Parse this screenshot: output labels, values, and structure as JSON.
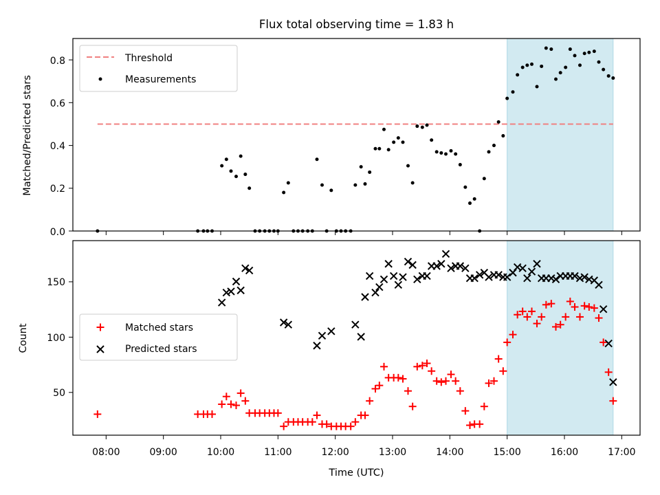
{
  "figure": {
    "title": "Flux total observing time = 1.83 h",
    "xlabel": "Time (UTC)",
    "x_ticks": [
      "08:00",
      "09:00",
      "10:00",
      "11:00",
      "12:00",
      "13:00",
      "14:00",
      "15:00",
      "16:00",
      "17:00"
    ]
  },
  "colors": {
    "threshold": "#f08080",
    "measurements": "#000000",
    "matched": "#ff0000",
    "predicted": "#000000",
    "shade": "#add8e6"
  },
  "chart_data": [
    {
      "type": "scatter",
      "panel": "top",
      "title": "Flux total observing time = 1.83 h",
      "ylabel": "Matched/Predicted stars",
      "xlim": [
        7.42,
        17.32
      ],
      "ylim": [
        0,
        0.9
      ],
      "y_ticks": [
        "0.0",
        "0.2",
        "0.4",
        "0.6",
        "0.8"
      ],
      "y_tick_values": [
        0,
        0.2,
        0.4,
        0.6,
        0.8
      ],
      "shaded_region": [
        15.0,
        16.85
      ],
      "legend": {
        "placement": "upper-left",
        "threshold_label": "Threshold",
        "measurements_label": "Measurements"
      },
      "threshold": {
        "value": 0.5,
        "x_range": [
          7.85,
          16.85
        ]
      },
      "measurements": {
        "x": [
          7.85,
          9.6,
          9.7,
          9.77,
          9.85,
          10.02,
          10.1,
          10.18,
          10.27,
          10.35,
          10.43,
          10.5,
          10.6,
          10.68,
          10.77,
          10.85,
          10.93,
          11.0,
          11.1,
          11.18,
          11.27,
          11.35,
          11.43,
          11.52,
          11.6,
          11.68,
          11.77,
          11.85,
          11.93,
          12.02,
          12.1,
          12.18,
          12.27,
          12.35,
          12.45,
          12.52,
          12.6,
          12.7,
          12.77,
          12.85,
          12.93,
          13.02,
          13.1,
          13.18,
          13.27,
          13.35,
          13.43,
          13.52,
          13.6,
          13.68,
          13.77,
          13.85,
          13.93,
          14.02,
          14.1,
          14.18,
          14.27,
          14.35,
          14.43,
          14.52,
          14.6,
          14.68,
          14.77,
          14.85,
          14.93,
          15.0,
          15.1,
          15.18,
          15.27,
          15.35,
          15.43,
          15.52,
          15.6,
          15.68,
          15.77,
          15.85,
          15.93,
          16.02,
          16.1,
          16.18,
          16.27,
          16.35,
          16.43,
          16.52,
          16.6,
          16.68,
          16.77,
          16.85
        ],
        "y": [
          0,
          0,
          0,
          0,
          0,
          0.305,
          0.335,
          0.28,
          0.255,
          0.35,
          0.265,
          0.2,
          0,
          0,
          0,
          0,
          0,
          0,
          0.18,
          0.225,
          0,
          0,
          0,
          0,
          0,
          0.335,
          0.215,
          0,
          0.19,
          0,
          0,
          0,
          0,
          0.215,
          0.3,
          0.22,
          0.275,
          0.385,
          0.385,
          0.475,
          0.38,
          0.415,
          0.435,
          0.415,
          0.305,
          0.225,
          0.49,
          0.485,
          0.495,
          0.425,
          0.37,
          0.365,
          0.36,
          0.375,
          0.36,
          0.31,
          0.205,
          0.13,
          0.15,
          0,
          0.245,
          0.37,
          0.4,
          0.51,
          0.445,
          0.62,
          0.65,
          0.73,
          0.765,
          0.775,
          0.78,
          0.675,
          0.77,
          0.855,
          0.85,
          0.71,
          0.74,
          0.765,
          0.85,
          0.82,
          0.775,
          0.83,
          0.835,
          0.84,
          0.79,
          0.755,
          0.725,
          0.715
        ]
      }
    },
    {
      "type": "scatter",
      "panel": "bottom",
      "ylabel": "Count",
      "xlabel": "Time (UTC)",
      "xlim": [
        7.42,
        17.32
      ],
      "ylim": [
        12,
        188
      ],
      "y_ticks": [
        "50",
        "100",
        "150"
      ],
      "y_tick_values": [
        50,
        100,
        150
      ],
      "shaded_region": [
        15.0,
        16.85
      ],
      "legend": {
        "placement": "center-left"
      },
      "series": [
        {
          "name": "Matched stars",
          "marker": "plus",
          "x": [
            7.85,
            9.6,
            9.7,
            9.77,
            9.85,
            10.02,
            10.1,
            10.18,
            10.27,
            10.35,
            10.43,
            10.5,
            10.6,
            10.68,
            10.77,
            10.85,
            10.93,
            11.0,
            11.1,
            11.18,
            11.27,
            11.35,
            11.43,
            11.52,
            11.6,
            11.68,
            11.77,
            11.85,
            11.93,
            12.02,
            12.1,
            12.18,
            12.27,
            12.35,
            12.45,
            12.52,
            12.6,
            12.7,
            12.77,
            12.85,
            12.93,
            13.02,
            13.1,
            13.18,
            13.27,
            13.35,
            13.43,
            13.52,
            13.6,
            13.68,
            13.77,
            13.85,
            13.93,
            14.02,
            14.1,
            14.18,
            14.27,
            14.35,
            14.43,
            14.52,
            14.6,
            14.68,
            14.77,
            14.85,
            14.93,
            15.0,
            15.1,
            15.18,
            15.27,
            15.35,
            15.43,
            15.52,
            15.6,
            15.68,
            15.77,
            15.85,
            15.93,
            16.02,
            16.1,
            16.18,
            16.27,
            16.35,
            16.43,
            16.52,
            16.6,
            16.68,
            16.77,
            16.85
          ],
          "y": [
            31,
            31,
            31,
            31,
            31,
            40,
            47,
            40,
            39,
            50,
            43,
            32,
            32,
            32,
            32,
            32,
            32,
            32,
            20,
            24,
            24,
            24,
            24,
            24,
            24,
            30,
            22,
            22,
            20,
            20,
            20,
            20,
            20,
            24,
            30,
            30,
            43,
            54,
            57,
            74,
            64,
            64,
            64,
            63,
            52,
            38,
            74,
            75,
            77,
            70,
            61,
            60,
            61,
            67,
            61,
            52,
            34,
            21,
            22,
            22,
            38,
            59,
            61,
            81,
            70,
            96,
            103,
            121,
            124,
            119,
            124,
            113,
            119,
            130,
            131,
            110,
            112,
            119,
            133,
            128,
            119,
            129,
            128,
            127,
            118,
            96,
            69,
            43
          ]
        },
        {
          "name": "Predicted stars",
          "marker": "x",
          "x": [
            10.02,
            10.1,
            10.18,
            10.27,
            10.35,
            10.43,
            10.5,
            11.1,
            11.18,
            11.68,
            11.77,
            11.93,
            12.35,
            12.45,
            12.52,
            12.6,
            12.7,
            12.77,
            12.85,
            12.93,
            13.02,
            13.1,
            13.18,
            13.27,
            13.35,
            13.43,
            13.52,
            13.6,
            13.68,
            13.77,
            13.85,
            13.93,
            14.02,
            14.1,
            14.18,
            14.27,
            14.35,
            14.43,
            14.52,
            14.6,
            14.68,
            14.77,
            14.85,
            14.93,
            15.0,
            15.1,
            15.18,
            15.27,
            15.35,
            15.43,
            15.52,
            15.6,
            15.68,
            15.77,
            15.85,
            15.93,
            16.02,
            16.1,
            16.18,
            16.27,
            16.35,
            16.43,
            16.52,
            16.6,
            16.68,
            16.77,
            16.85
          ],
          "y": [
            132,
            141,
            142,
            151,
            143,
            163,
            161,
            114,
            112,
            93,
            102,
            106,
            112,
            101,
            137,
            156,
            141,
            146,
            153,
            167,
            156,
            148,
            155,
            169,
            166,
            153,
            156,
            156,
            165,
            165,
            167,
            176,
            163,
            165,
            165,
            163,
            154,
            154,
            157,
            159,
            155,
            157,
            157,
            155,
            155,
            159,
            164,
            163,
            154,
            160,
            167,
            154,
            154,
            154,
            153,
            156,
            156,
            156,
            156,
            154,
            155,
            153,
            152,
            148,
            126,
            95,
            60
          ]
        }
      ]
    }
  ]
}
